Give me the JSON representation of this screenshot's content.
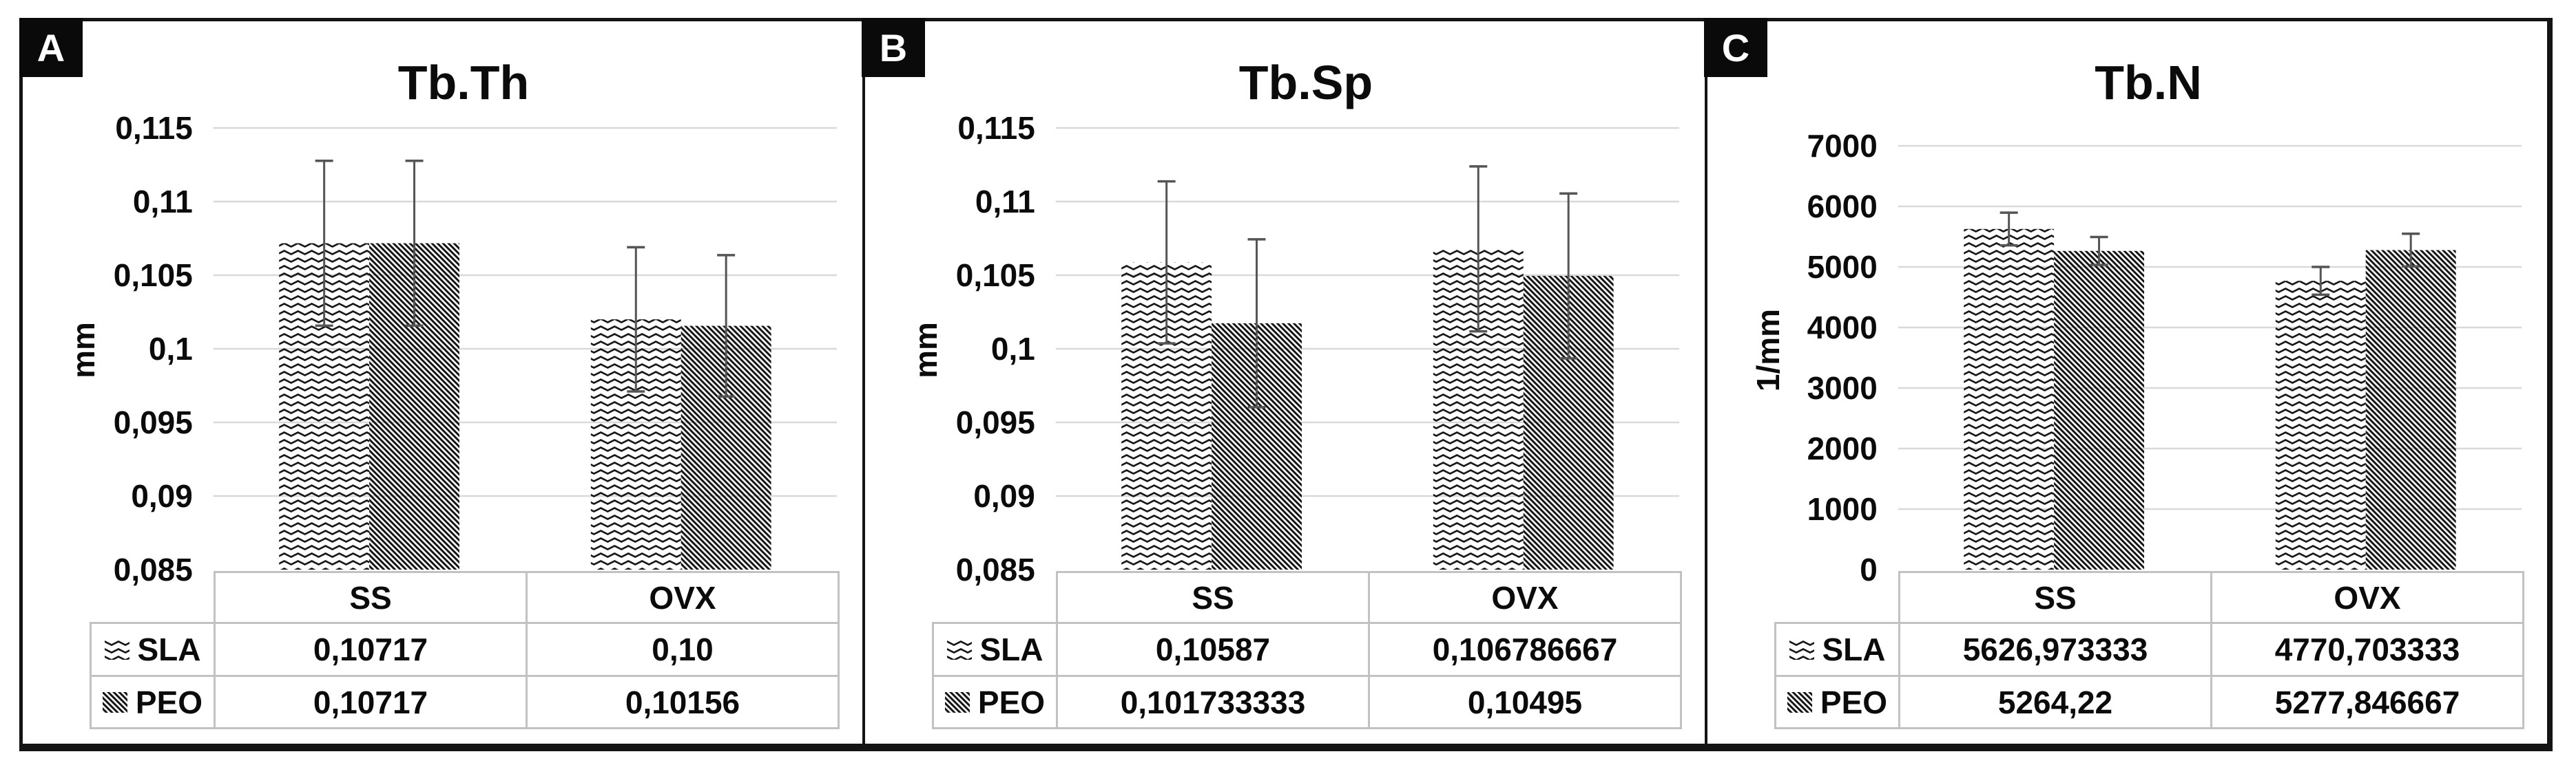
{
  "figure": {
    "panel_count": 3,
    "style": {
      "background": "#ffffff",
      "frame_border": "#141414",
      "ink": "#0b0b0b",
      "gridline": "#d9d9d9",
      "table_border": "#c2c2c2",
      "error_bar": "#555555",
      "pattern_ink": "#161616"
    }
  },
  "chart_data": [
    {
      "type": "bar",
      "panel_label": "A",
      "title": "Tb.Th",
      "xlabel": "",
      "ylabel": "mm",
      "ylim": [
        0.085,
        0.115
      ],
      "ytick_step": 0.005,
      "ytick_labels": [
        "0,115",
        "0,11",
        "0,105",
        "0,1",
        "0,095",
        "0,09",
        "0,085"
      ],
      "grid": true,
      "legend_position": "table-left",
      "categories": [
        "SS",
        "OVX"
      ],
      "series": [
        {
          "name": "SLA",
          "pattern": "zigzag",
          "values": [
            0.10717,
            0.102
          ],
          "errors": [
            0.0056,
            0.0049
          ],
          "cell_text": [
            "0,10717",
            "0,10"
          ]
        },
        {
          "name": "PEO",
          "pattern": "diagonal",
          "values": [
            0.10717,
            0.10156
          ],
          "errors": [
            0.0056,
            0.0048
          ],
          "cell_text": [
            "0,10717",
            "0,10156"
          ]
        }
      ]
    },
    {
      "type": "bar",
      "panel_label": "B",
      "title": "Tb.Sp",
      "xlabel": "",
      "ylabel": "mm",
      "ylim": [
        0.085,
        0.115
      ],
      "ytick_step": 0.005,
      "ytick_labels": [
        "0,115",
        "0,11",
        "0,105",
        "0,1",
        "0,095",
        "0,09",
        "0,085"
      ],
      "grid": true,
      "legend_position": "table-left",
      "categories": [
        "SS",
        "OVX"
      ],
      "series": [
        {
          "name": "SLA",
          "pattern": "zigzag",
          "values": [
            0.10587,
            0.106786667
          ],
          "errors": [
            0.0055,
            0.0056
          ],
          "cell_text": [
            "0,10587",
            "0,106786667"
          ]
        },
        {
          "name": "PEO",
          "pattern": "diagonal",
          "values": [
            0.101733333,
            0.10495
          ],
          "errors": [
            0.0057,
            0.0056
          ],
          "cell_text": [
            "0,101733333",
            "0,10495"
          ]
        }
      ]
    },
    {
      "type": "bar",
      "panel_label": "C",
      "title": "Tb.N",
      "xlabel": "",
      "ylabel": "1/mm",
      "ylim": [
        0,
        7000
      ],
      "ytick_step": 1000,
      "ytick_labels": [
        "7000",
        "6000",
        "5000",
        "4000",
        "3000",
        "2000",
        "1000",
        "0"
      ],
      "grid": true,
      "legend_position": "table-left",
      "categories": [
        "SS",
        "OVX"
      ],
      "series": [
        {
          "name": "SLA",
          "pattern": "zigzag",
          "values": [
            5626.973333,
            4770.703333
          ],
          "errors": [
            270,
            230
          ],
          "cell_text": [
            "5626,973333",
            "4770,703333"
          ]
        },
        {
          "name": "PEO",
          "pattern": "diagonal",
          "values": [
            5264.22,
            5277.846667
          ],
          "errors": [
            230,
            270
          ],
          "cell_text": [
            "5264,22",
            "5277,846667"
          ]
        }
      ]
    }
  ]
}
